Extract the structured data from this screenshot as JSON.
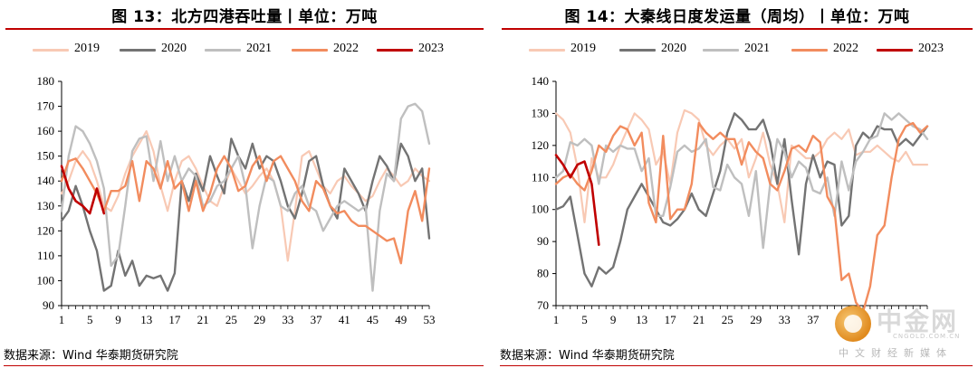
{
  "charts": [
    {
      "title": "图 13：北方四港吞吐量丨单位：万吨",
      "source": "数据来源：Wind 华泰期货研究院"
    },
    {
      "title": "图 14：大秦线日度发运量（周均）丨单位：万吨",
      "source": "数据来源：Wind 华泰期货研究院"
    }
  ],
  "series_colors": {
    "2019": "#f8c9b4",
    "2020": "#737373",
    "2021": "#bfbfbf",
    "2022": "#f28c5e",
    "2023": "#c00000"
  },
  "watermark": {
    "cn": "中金网",
    "en": "CNGOLD.COM.CN",
    "sub": "中文财经新媒体"
  },
  "chart_data": [
    {
      "type": "line",
      "title": "图 13：北方四港吞吐量丨单位：万吨",
      "xlabel": "",
      "ylabel": "",
      "ylim": [
        90,
        180
      ],
      "yticks": [
        90,
        100,
        110,
        120,
        130,
        140,
        150,
        160,
        170,
        180
      ],
      "xlim": [
        1,
        53
      ],
      "xticks": [
        1,
        5,
        9,
        13,
        17,
        21,
        25,
        29,
        33,
        37,
        41,
        45,
        49,
        53
      ],
      "legend": "top",
      "grid": false,
      "series": [
        {
          "name": "2019",
          "x": [
            1,
            2,
            3,
            4,
            5,
            6,
            7,
            8,
            9,
            10,
            11,
            12,
            13,
            14,
            15,
            16,
            17,
            18,
            19,
            20,
            21,
            22,
            23,
            24,
            25,
            26,
            27,
            28,
            29,
            30,
            31,
            32,
            33,
            34,
            35,
            36,
            37,
            38,
            39,
            40,
            41,
            42,
            43,
            44,
            45,
            46,
            47,
            48,
            49,
            50,
            51,
            52,
            53
          ],
          "values": [
            135,
            140,
            148,
            152,
            148,
            140,
            130,
            128,
            134,
            143,
            150,
            155,
            160,
            152,
            138,
            128,
            140,
            148,
            150,
            145,
            138,
            132,
            130,
            138,
            145,
            140,
            135,
            138,
            142,
            145,
            140,
            130,
            108,
            128,
            150,
            152,
            145,
            138,
            135,
            140,
            142,
            138,
            135,
            132,
            134,
            140,
            145,
            142,
            138,
            140,
            145,
            142,
            140
          ]
        },
        {
          "name": "2020",
          "x": [
            1,
            2,
            3,
            4,
            5,
            6,
            7,
            8,
            9,
            10,
            11,
            12,
            13,
            14,
            15,
            16,
            17,
            18,
            19,
            20,
            21,
            22,
            23,
            24,
            25,
            26,
            27,
            28,
            29,
            30,
            31,
            32,
            33,
            34,
            35,
            36,
            37,
            38,
            39,
            40,
            41,
            42,
            43,
            44,
            45,
            46,
            47,
            48,
            49,
            50,
            51,
            52,
            53
          ],
          "values": [
            124,
            128,
            138,
            130,
            120,
            112,
            96,
            98,
            112,
            102,
            108,
            98,
            102,
            101,
            102,
            96,
            103,
            140,
            132,
            143,
            136,
            150,
            142,
            135,
            157,
            150,
            145,
            155,
            145,
            150,
            148,
            140,
            130,
            125,
            135,
            148,
            150,
            138,
            130,
            125,
            145,
            140,
            135,
            128,
            140,
            150,
            146,
            140,
            155,
            150,
            140,
            145,
            117
          ]
        },
        {
          "name": "2021",
          "x": [
            1,
            2,
            3,
            4,
            5,
            6,
            7,
            8,
            9,
            10,
            11,
            12,
            13,
            14,
            15,
            16,
            17,
            18,
            19,
            20,
            21,
            22,
            23,
            24,
            25,
            26,
            27,
            28,
            29,
            30,
            31,
            32,
            33,
            34,
            35,
            36,
            37,
            38,
            39,
            40,
            41,
            42,
            43,
            44,
            45,
            46,
            47,
            48,
            49,
            50,
            51,
            52,
            53
          ],
          "values": [
            128,
            150,
            162,
            160,
            155,
            148,
            137,
            106,
            110,
            130,
            152,
            157,
            158,
            140,
            156,
            140,
            150,
            140,
            145,
            142,
            130,
            132,
            138,
            140,
            145,
            150,
            138,
            113,
            130,
            142,
            140,
            130,
            128,
            135,
            138,
            130,
            128,
            120,
            125,
            130,
            132,
            130,
            128,
            130,
            96,
            128,
            143,
            140,
            165,
            170,
            171,
            168,
            155
          ]
        },
        {
          "name": "2022",
          "x": [
            1,
            2,
            3,
            4,
            5,
            6,
            7,
            8,
            9,
            10,
            11,
            12,
            13,
            14,
            15,
            16,
            17,
            18,
            19,
            20,
            21,
            22,
            23,
            24,
            25,
            26,
            27,
            28,
            29,
            30,
            31,
            32,
            33,
            34,
            35,
            36,
            37,
            38,
            39,
            40,
            41,
            42,
            43,
            44,
            45,
            46,
            47,
            48,
            49,
            50,
            51,
            52,
            53
          ],
          "values": [
            140,
            148,
            149,
            145,
            140,
            135,
            128,
            136,
            136,
            138,
            148,
            132,
            148,
            145,
            137,
            148,
            137,
            140,
            128,
            140,
            128,
            135,
            145,
            150,
            145,
            136,
            138,
            146,
            150,
            140,
            148,
            150,
            145,
            140,
            132,
            128,
            140,
            137,
            130,
            127,
            128,
            124,
            122,
            122,
            120,
            118,
            116,
            117,
            107,
            128,
            136,
            124,
            145
          ]
        },
        {
          "name": "2023",
          "x": [
            1,
            2,
            3,
            4,
            5,
            6,
            7
          ],
          "values": [
            146,
            137,
            132,
            130,
            127,
            137,
            127
          ]
        }
      ]
    },
    {
      "type": "line",
      "title": "图 14：大秦线日度发运量（周均）丨单位：万吨",
      "xlabel": "",
      "ylabel": "",
      "ylim": [
        70,
        140
      ],
      "yticks": [
        70,
        80,
        90,
        100,
        110,
        120,
        130,
        140
      ],
      "xlim": [
        1,
        53
      ],
      "xticks": [
        1,
        5,
        9,
        13,
        17,
        21,
        25,
        29,
        33,
        37,
        41
      ],
      "legend": "top",
      "grid": false,
      "series": [
        {
          "name": "2019",
          "x": [
            1,
            2,
            3,
            4,
            5,
            6,
            7,
            8,
            9,
            10,
            11,
            12,
            13,
            14,
            15,
            16,
            17,
            18,
            19,
            20,
            21,
            22,
            23,
            24,
            25,
            26,
            27,
            28,
            29,
            30,
            31,
            32,
            33,
            34,
            35,
            36,
            37,
            38,
            39,
            40,
            41,
            42,
            43,
            44,
            45,
            46,
            47,
            48,
            49,
            50,
            51,
            52,
            53
          ],
          "values": [
            130,
            128,
            124,
            113,
            96,
            116,
            110,
            110,
            114,
            120,
            125,
            130,
            128,
            125,
            114,
            118,
            108,
            124,
            131,
            130,
            128,
            120,
            117,
            120,
            122,
            119,
            122,
            110,
            116,
            124,
            114,
            108,
            96,
            120,
            118,
            116,
            116,
            118,
            122,
            124,
            122,
            125,
            117,
            118,
            118,
            120,
            118,
            116,
            115,
            118,
            114,
            114,
            114
          ]
        },
        {
          "name": "2020",
          "x": [
            1,
            2,
            3,
            4,
            5,
            6,
            7,
            8,
            9,
            10,
            11,
            12,
            13,
            14,
            15,
            16,
            17,
            18,
            19,
            20,
            21,
            22,
            23,
            24,
            25,
            26,
            27,
            28,
            29,
            30,
            31,
            32,
            33,
            34,
            35,
            36,
            37,
            38,
            39,
            40,
            41,
            42,
            43,
            44,
            45,
            46,
            47,
            48,
            49,
            50,
            51,
            52,
            53
          ],
          "values": [
            100,
            101,
            104,
            92,
            80,
            76,
            82,
            80,
            82,
            90,
            100,
            104,
            108,
            104,
            100,
            96,
            95,
            97,
            100,
            105,
            100,
            98,
            105,
            112,
            124,
            130,
            128,
            125,
            125,
            128,
            121,
            108,
            122,
            103,
            86,
            108,
            117,
            110,
            115,
            114,
            95,
            98,
            120,
            124,
            122,
            126,
            125,
            125,
            120,
            122,
            120,
            123,
            126
          ]
        },
        {
          "name": "2021",
          "x": [
            1,
            2,
            3,
            4,
            5,
            6,
            7,
            8,
            9,
            10,
            11,
            12,
            13,
            14,
            15,
            16,
            17,
            18,
            19,
            20,
            21,
            22,
            23,
            24,
            25,
            26,
            27,
            28,
            29,
            30,
            31,
            32,
            33,
            34,
            35,
            36,
            37,
            38,
            39,
            40,
            41,
            42,
            43,
            44,
            45,
            46,
            47,
            48,
            49,
            50,
            51,
            52,
            53
          ],
          "values": [
            110,
            112,
            121,
            120,
            122,
            120,
            108,
            120,
            118,
            120,
            119,
            119,
            112,
            116,
            98,
            98,
            107,
            118,
            120,
            118,
            119,
            122,
            107,
            106,
            114,
            110,
            108,
            98,
            112,
            88,
            108,
            122,
            118,
            110,
            115,
            113,
            106,
            105,
            110,
            98,
            115,
            106,
            115,
            118,
            122,
            123,
            130,
            128,
            130,
            128,
            126,
            125,
            122
          ]
        },
        {
          "name": "2022",
          "x": [
            1,
            2,
            3,
            4,
            5,
            6,
            7,
            8,
            9,
            10,
            11,
            12,
            13,
            14,
            15,
            16,
            17,
            18,
            19,
            20,
            21,
            22,
            23,
            24,
            25,
            26,
            27,
            28,
            29,
            30,
            31,
            32,
            33,
            34,
            35,
            36,
            37,
            38,
            39,
            40,
            41,
            42,
            43,
            44,
            45,
            46,
            47,
            48,
            49,
            50,
            51,
            52,
            53
          ],
          "values": [
            108,
            110,
            111,
            108,
            106,
            112,
            120,
            118,
            123,
            126,
            125,
            120,
            124,
            102,
            96,
            123,
            97,
            100,
            100,
            108,
            127,
            124,
            122,
            124,
            122,
            122,
            114,
            121,
            118,
            116,
            108,
            106,
            112,
            119,
            120,
            118,
            123,
            121,
            104,
            100,
            78,
            80,
            71,
            68,
            76,
            92,
            95,
            110,
            122,
            126,
            127,
            124,
            126
          ]
        },
        {
          "name": "2023",
          "x": [
            1,
            2,
            3,
            4,
            5,
            6,
            7
          ],
          "values": [
            117,
            114,
            110,
            114,
            115,
            108,
            89
          ]
        }
      ]
    }
  ]
}
